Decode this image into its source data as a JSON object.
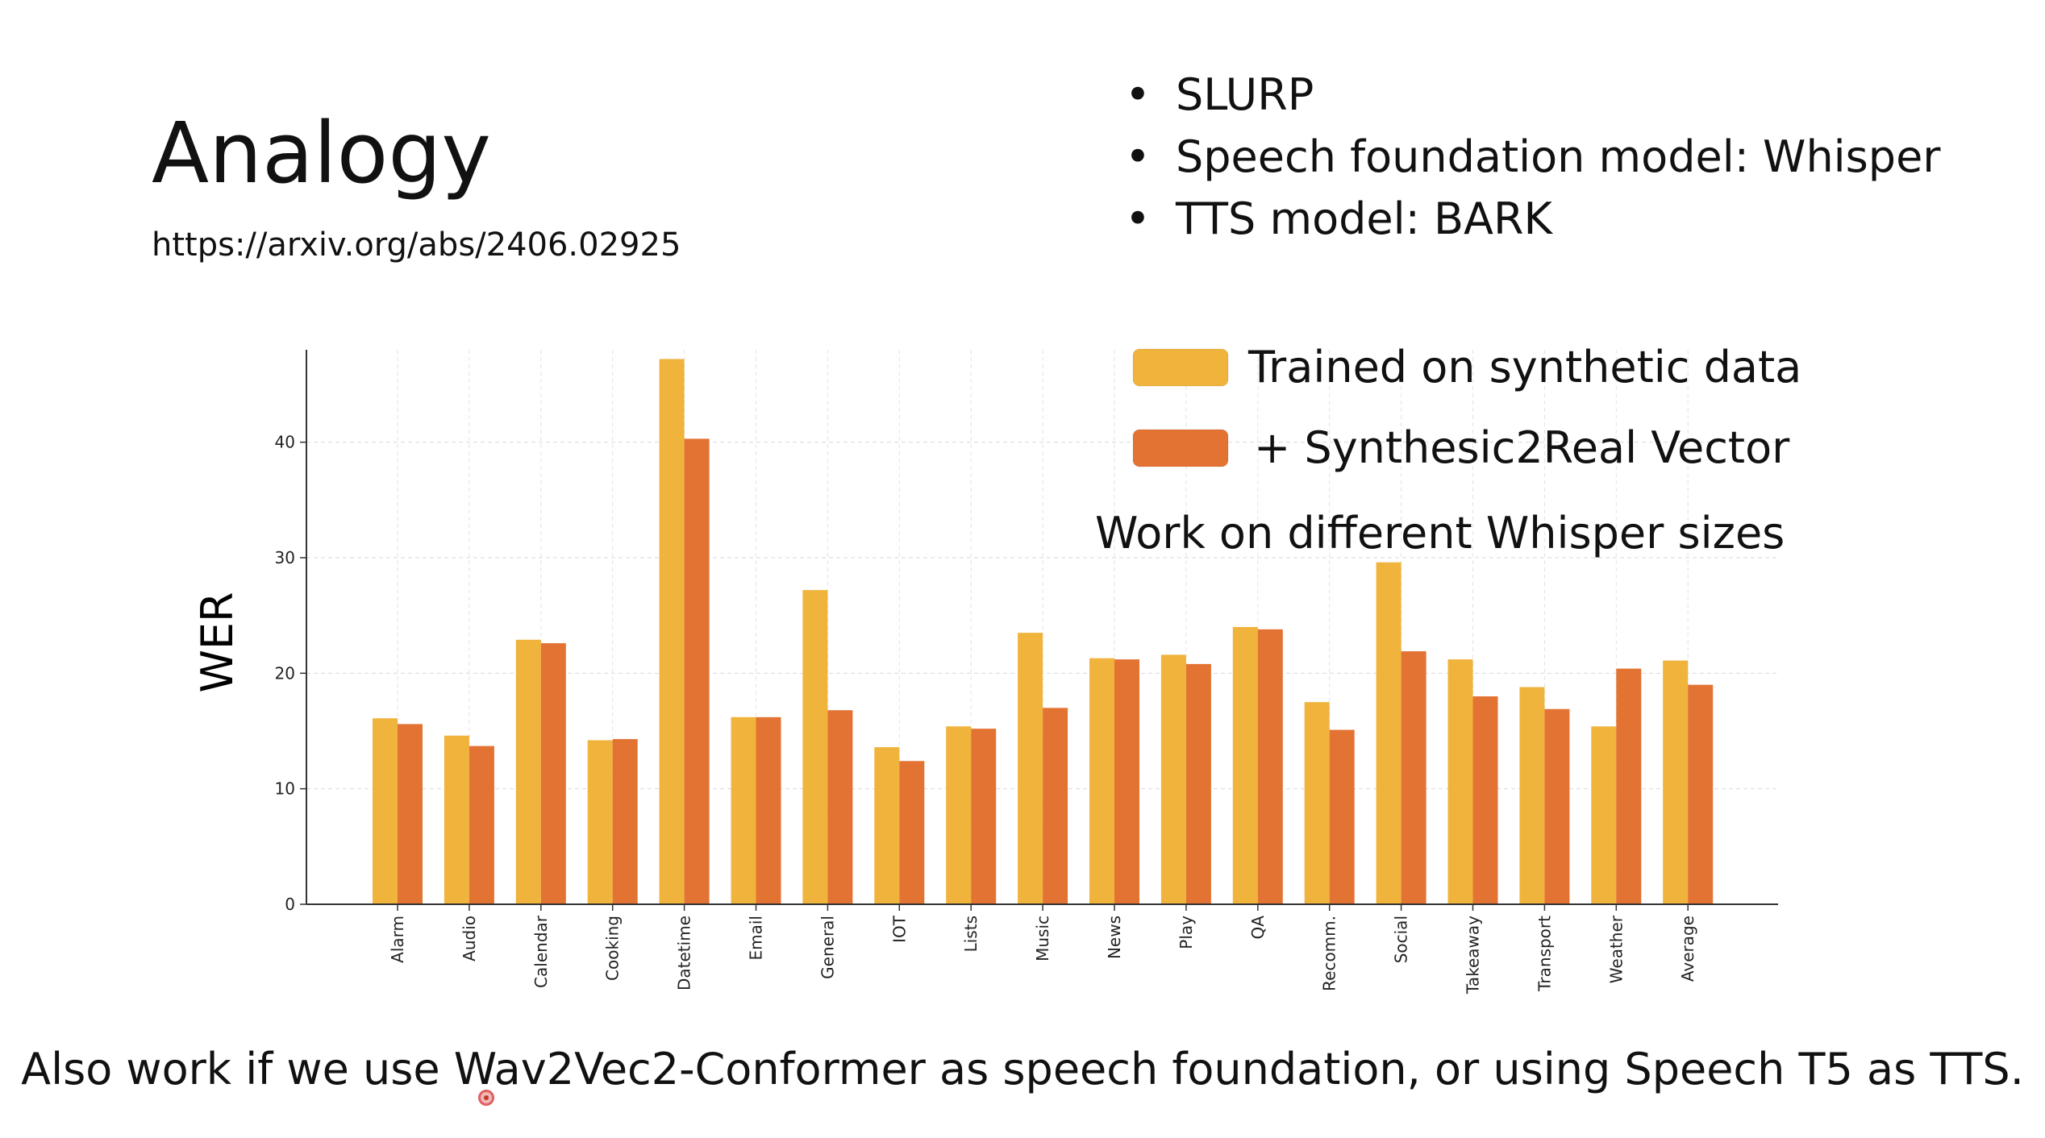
{
  "slide": {
    "title": "Analogy",
    "link": "https://arxiv.org/abs/2406.02925",
    "bullets": [
      "SLURP",
      "Speech foundation model: Whisper",
      "TTS model: BARK"
    ],
    "bullet_glyph": "•",
    "footer": "Also work if we use Wav2Vec2-Conformer as speech foundation, or using Speech T5 as TTS."
  },
  "chart_data": {
    "type": "bar",
    "ylabel": "WER",
    "xlabel": "",
    "ylim": [
      0,
      48
    ],
    "yticks": [
      0,
      10,
      20,
      30,
      40
    ],
    "grid": true,
    "legend_placement": "top-right",
    "annotation": "Work on different Whisper sizes",
    "categories": [
      "Alarm",
      "Audio",
      "Calendar",
      "Cooking",
      "Datetime",
      "Email",
      "General",
      "IOT",
      "Lists",
      "Music",
      "News",
      "Play",
      "QA",
      "Recomm.",
      "Social",
      "Takeaway",
      "Transport",
      "Weather",
      "Average"
    ],
    "series": [
      {
        "name": "Trained on synthetic data",
        "color": "#F0B33C",
        "values": [
          16.1,
          14.6,
          22.9,
          14.2,
          47.2,
          16.2,
          27.2,
          13.6,
          15.4,
          23.5,
          21.3,
          21.6,
          24.0,
          17.5,
          29.6,
          21.2,
          18.8,
          15.4,
          21.1
        ]
      },
      {
        "name": "+ Synthesic2Real Vector",
        "color": "#E37333",
        "values": [
          15.6,
          13.7,
          22.6,
          14.3,
          40.3,
          16.2,
          16.8,
          12.4,
          15.2,
          17.0,
          21.2,
          20.8,
          23.8,
          15.1,
          21.9,
          18.0,
          16.9,
          20.4,
          19.0
        ]
      }
    ]
  }
}
